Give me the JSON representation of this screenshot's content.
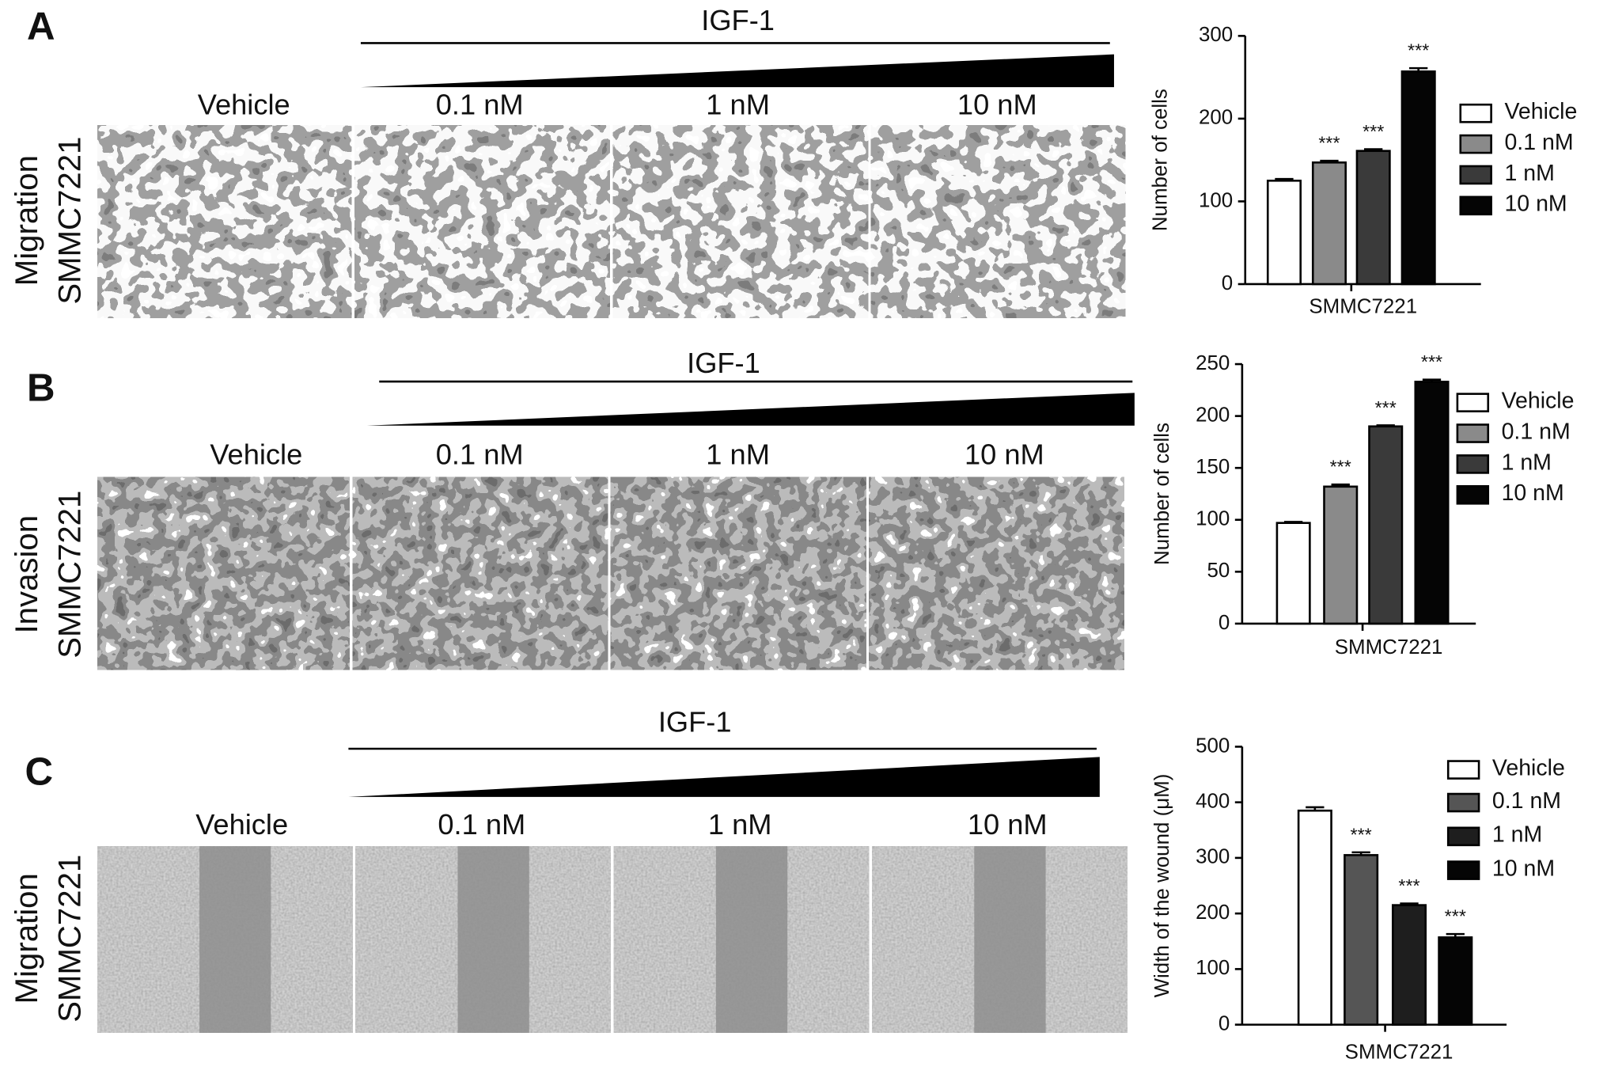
{
  "panels": [
    {
      "label": "A",
      "stimulus": "IGF-1",
      "conditions": [
        "Vehicle",
        "0.1 nM",
        "1 nM",
        "10 nM"
      ],
      "assay": "Migration",
      "cell_line": "SMMC7221"
    },
    {
      "label": "B",
      "stimulus": "IGF-1",
      "conditions": [
        "Vehicle",
        "0.1 nM",
        "1 nM",
        "10 nM"
      ],
      "assay": "Invasion",
      "cell_line": "SMMC7221"
    },
    {
      "label": "C",
      "stimulus": "IGF-1",
      "conditions": [
        "Vehicle",
        "0.1 nM",
        "1 nM",
        "10 nM"
      ],
      "assay": "Migration",
      "cell_line": "SMMC7221"
    }
  ],
  "chart_data": [
    {
      "type": "bar",
      "y_label": "Number of cells",
      "categories": [
        "SMMC7221"
      ],
      "ylim": [
        0,
        300
      ],
      "yticks": [
        0,
        100,
        200,
        300
      ],
      "series": [
        {
          "name": "Vehicle",
          "color": "#ffffff",
          "values": [
            125
          ],
          "errors": [
            2
          ]
        },
        {
          "name": "0.1 nM",
          "color": "#8a8a8a",
          "values": [
            147
          ],
          "errors": [
            2
          ],
          "annotation": "***"
        },
        {
          "name": "1 nM",
          "color": "#3a3a3a",
          "values": [
            161
          ],
          "errors": [
            2
          ],
          "annotation": "***"
        },
        {
          "name": "10 nM",
          "color": "#050505",
          "values": [
            257
          ],
          "errors": [
            4
          ],
          "annotation": "***"
        }
      ]
    },
    {
      "type": "bar",
      "y_label": "Number of cells",
      "categories": [
        "SMMC7221"
      ],
      "ylim": [
        0,
        250
      ],
      "yticks": [
        0,
        50,
        100,
        150,
        200,
        250
      ],
      "series": [
        {
          "name": "Vehicle",
          "color": "#ffffff",
          "values": [
            97
          ],
          "errors": [
            1
          ]
        },
        {
          "name": "0.1 nM",
          "color": "#8a8a8a",
          "values": [
            132
          ],
          "errors": [
            2
          ],
          "annotation": "***"
        },
        {
          "name": "1 nM",
          "color": "#3a3a3a",
          "values": [
            190
          ],
          "errors": [
            1
          ],
          "annotation": "***"
        },
        {
          "name": "10 nM",
          "color": "#050505",
          "values": [
            233
          ],
          "errors": [
            2
          ],
          "annotation": "***"
        }
      ]
    },
    {
      "type": "bar",
      "y_label": "Width of the wound (μM)",
      "categories": [
        "SMMC7221"
      ],
      "ylim": [
        0,
        500
      ],
      "yticks": [
        0,
        100,
        200,
        300,
        400,
        500
      ],
      "series": [
        {
          "name": "Vehicle",
          "color": "#ffffff",
          "values": [
            385
          ],
          "errors": [
            6
          ]
        },
        {
          "name": "0.1 nM",
          "color": "#555555",
          "values": [
            305
          ],
          "errors": [
            5
          ],
          "annotation": "***"
        },
        {
          "name": "1 nM",
          "color": "#1e1e1e",
          "values": [
            215
          ],
          "errors": [
            3
          ],
          "annotation": "***"
        },
        {
          "name": "10 nM",
          "color": "#050505",
          "values": [
            157
          ],
          "errors": [
            6
          ],
          "annotation": "***"
        }
      ]
    }
  ]
}
